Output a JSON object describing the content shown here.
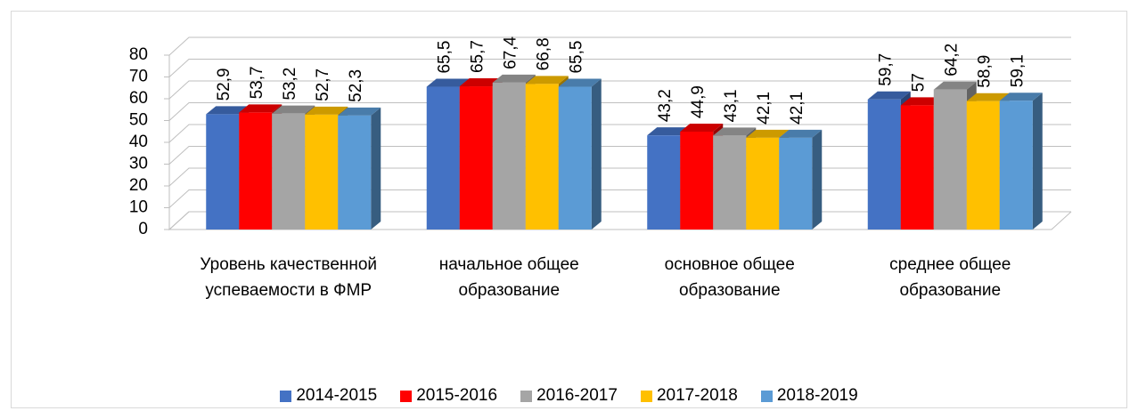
{
  "chart_data": {
    "type": "bar3d",
    "categories": [
      "Уровень качественной успеваемости в ФМР",
      "начальное общее образование",
      "основное общее образование",
      "среднее общее образование"
    ],
    "series": [
      {
        "name": "2014-2015",
        "color": "#4472c4",
        "values": [
          52.9,
          65.5,
          43.2,
          59.7
        ],
        "value_labels": [
          "52,9",
          "65,5",
          "43,2",
          "59,7"
        ]
      },
      {
        "name": "2015-2016",
        "color": "#ff0000",
        "values": [
          53.7,
          65.7,
          44.9,
          57
        ],
        "value_labels": [
          "53,7",
          "65,7",
          "44,9",
          "57"
        ]
      },
      {
        "name": "2016-2017",
        "color": "#a5a5a5",
        "values": [
          53.2,
          67.4,
          43.1,
          64.2
        ],
        "value_labels": [
          "53,2",
          "67,4",
          "43,1",
          "64,2"
        ]
      },
      {
        "name": "2017-2018",
        "color": "#ffc000",
        "values": [
          52.7,
          66.8,
          42.1,
          58.9
        ],
        "value_labels": [
          "52,7",
          "66,8",
          "42,1",
          "58,9"
        ]
      },
      {
        "name": "2018-2019",
        "color": "#5b9bd5",
        "values": [
          52.3,
          65.5,
          42.1,
          59.1
        ],
        "value_labels": [
          "52,3",
          "65,5",
          "42,1",
          "59,1"
        ]
      }
    ],
    "ylim": [
      0,
      80
    ],
    "yticks": [
      0,
      10,
      20,
      30,
      40,
      50,
      60,
      70,
      80
    ],
    "grid": true,
    "legend": "bottom"
  }
}
